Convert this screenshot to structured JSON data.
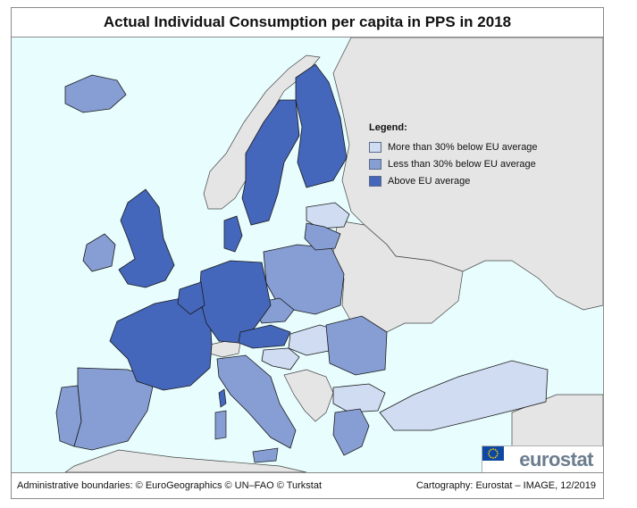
{
  "title": "Actual Individual Consumption per capita in PPS in 2018",
  "legend": {
    "title": "Legend:",
    "items": [
      {
        "label": "More than 30% below EU average",
        "color": "#cfdcf1"
      },
      {
        "label": "Less than 30% below EU average",
        "color": "#869ed3"
      },
      {
        "label": "Above EU average",
        "color": "#4466bb"
      }
    ]
  },
  "colors": {
    "sea": "#e8fdfe",
    "non_eu_land": "#e5e5e5",
    "border": "#1a1a1a"
  },
  "brand": {
    "name": "eurostat",
    "flag_icon": "eu-flag-icon"
  },
  "footer": {
    "left": "Administrative boundaries: © EuroGeographics © UN–FAO © Turkstat",
    "right": "Cartography: Eurostat – IMAGE, 12/2019"
  }
}
